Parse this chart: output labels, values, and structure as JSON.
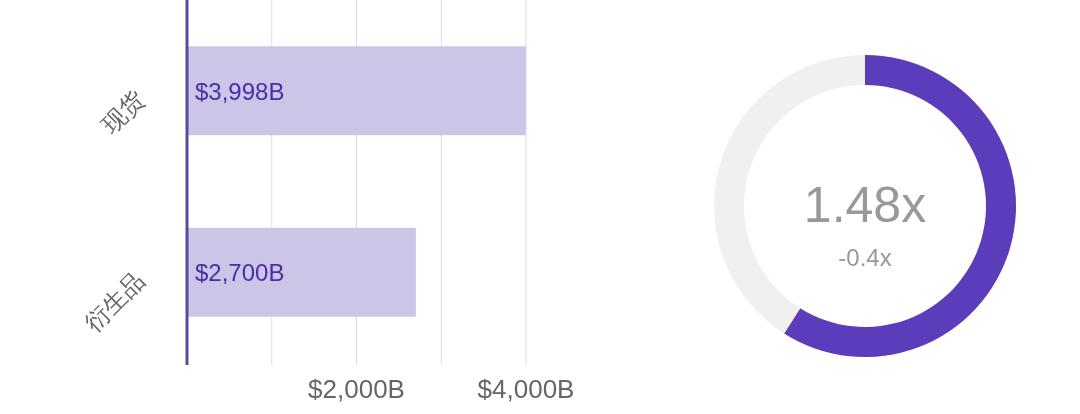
{
  "chart_data": [
    {
      "type": "bar",
      "orientation": "horizontal",
      "categories": [
        "现货",
        "衍生品"
      ],
      "values": [
        3998,
        2700
      ],
      "value_labels": [
        "$3,998B",
        "$2,700B"
      ],
      "color": "#cdc5e8",
      "xlim": [
        0,
        4000
      ],
      "xticks": [
        {
          "value": 1000,
          "label": null
        },
        {
          "value": 2000,
          "label": "$2,000B"
        },
        {
          "value": 3000,
          "label": null
        },
        {
          "value": 4000,
          "label": "$4,000B"
        }
      ],
      "grid": "x"
    },
    {
      "type": "donut",
      "categories": [
        null,
        null
      ],
      "values": [
        59,
        41
      ],
      "colors": [
        "#5b3cbb",
        "#f0f0f0"
      ],
      "annotations": [
        "1.48x",
        "-0.4x"
      ]
    }
  ]
}
